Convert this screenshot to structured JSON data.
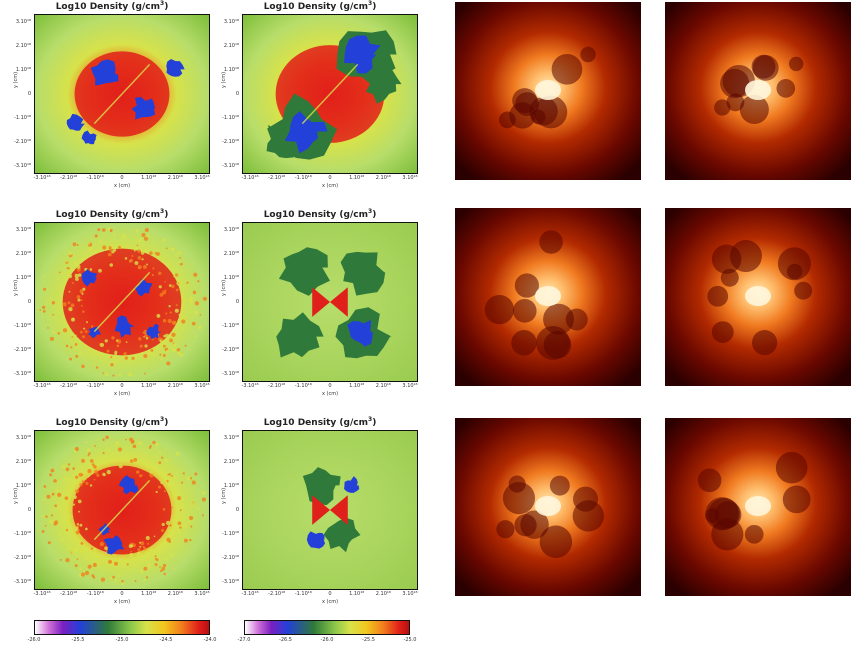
{
  "figure": {
    "sim_title_text": "Log10 Density  (g/cm",
    "sim_title_unit_exp": "3",
    "sim_title_close": ")",
    "x_axis_label": "x (cm)",
    "y_axis_label": "y (cm)",
    "x_ticks_a": [
      "-3.10¹⁸",
      "-2.10¹⁸",
      "-1.10¹⁸",
      "0",
      "1.10¹⁸",
      "2.10¹⁸",
      "3.10¹⁸"
    ],
    "y_ticks_a": [
      "3.10¹⁸",
      "2.10¹⁸",
      "1.10¹⁸",
      "0",
      "-1.10¹⁸",
      "-2.10¹⁸",
      "-3.10¹⁸"
    ],
    "colorbar_left_ticks": [
      "-26.0",
      "-25.5",
      "-25.0",
      "-24.5",
      "-24.0"
    ],
    "colorbar_right_ticks": [
      "-27.0",
      "-26.5",
      "-26.0",
      "-25.5",
      "-25.0"
    ],
    "colors": {
      "deep_red": "#e0201a",
      "orange": "#f2801e",
      "yellow_green": "#d7e24a",
      "light_green": "#b7dd6a",
      "dark_green": "#2f7a3a",
      "blue": "#2340d8",
      "xray_bg": "#4a0000",
      "xray_mid": "#b22a00",
      "xray_bright": "#ffe9b8"
    }
  }
}
